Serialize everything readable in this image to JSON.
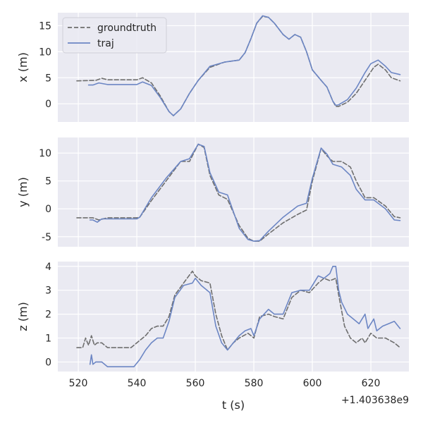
{
  "chart_data": {
    "type": "line",
    "xlabel": "t (s)",
    "x_offset_label": "+1.403638e9",
    "xlim": [
      513,
      633
    ],
    "x_ticks": [
      520,
      540,
      560,
      580,
      600,
      620
    ],
    "grid": true,
    "legend": {
      "placement": "top-left",
      "panel": 0
    },
    "colors": {
      "groundtruth": "#6e6e6e",
      "traj": "#6c86c4",
      "background": "#eaeaf2",
      "grid": "#ffffff"
    },
    "series_names": [
      "groundtruth",
      "traj"
    ],
    "panels": [
      {
        "ylabel": "x (m)",
        "ylim": [
          -3.5,
          17.5
        ],
        "y_ticks": [
          0,
          5,
          10,
          15
        ],
        "series": [
          {
            "name": "groundtruth",
            "style": "dashed",
            "x": [
              519.5,
              526,
              528,
              530,
              535,
              540,
              542,
              545,
              548,
              551,
              552.5,
              555,
              558,
              561,
              565,
              570,
              575,
              577,
              579,
              581,
              583,
              585,
              587,
              590,
              592,
              594,
              596,
              598,
              600,
              603,
              605,
              607,
              608,
              609,
              612,
              615,
              618,
              621,
              622.5,
              625,
              627,
              630
            ],
            "y": [
              4.4,
              4.5,
              4.9,
              4.6,
              4.6,
              4.6,
              5.0,
              4.0,
              1.5,
              -1.5,
              -2.3,
              -1.0,
              2.0,
              4.5,
              7.0,
              8.0,
              8.4,
              9.8,
              12.5,
              15.5,
              16.8,
              16.6,
              15.5,
              13.3,
              12.4,
              13.3,
              12.8,
              10.0,
              6.5,
              4.5,
              3.2,
              0.5,
              -0.5,
              -0.5,
              0.3,
              2.0,
              4.5,
              7.0,
              7.6,
              6.5,
              5.0,
              4.4
            ]
          },
          {
            "name": "traj",
            "style": "solid",
            "x": [
              523.5,
              525,
              527,
              528,
              530,
              535,
              540,
              542,
              545,
              548,
              551,
              552.5,
              555,
              558,
              561,
              565,
              570,
              575,
              577,
              579,
              581,
              583,
              585,
              587,
              590,
              592,
              594,
              596,
              598,
              600,
              603,
              605,
              607,
              608,
              609,
              612,
              615,
              618,
              620,
              622.5,
              625,
              627,
              630
            ],
            "y": [
              3.6,
              3.6,
              4.0,
              3.9,
              3.7,
              3.7,
              3.7,
              4.2,
              3.5,
              1.2,
              -1.5,
              -2.3,
              -1.0,
              2.0,
              4.5,
              7.2,
              8.0,
              8.4,
              9.8,
              12.5,
              15.5,
              16.9,
              16.6,
              15.5,
              13.3,
              12.4,
              13.3,
              12.8,
              10.0,
              6.5,
              4.5,
              3.2,
              0.5,
              -0.3,
              -0.2,
              0.8,
              3.0,
              6.0,
              7.7,
              8.4,
              7.2,
              6.0,
              5.6
            ]
          }
        ]
      },
      {
        "ylabel": "y (m)",
        "ylim": [
          -6.8,
          12.8
        ],
        "y_ticks": [
          -5,
          0,
          5,
          10
        ],
        "series": [
          {
            "name": "groundtruth",
            "style": "dashed",
            "x": [
              519.5,
              525,
              527,
              530,
              535,
              540,
              541,
              545,
              550,
              555,
              558,
              561,
              563,
              565,
              568,
              571,
              575,
              578,
              580,
              582,
              585,
              590,
              595,
              598,
              600,
              603,
              605,
              607,
              610,
              613,
              615,
              618,
              621,
              625,
              628,
              630
            ],
            "y": [
              -1.6,
              -1.6,
              -2.0,
              -1.6,
              -1.6,
              -1.6,
              -1.5,
              1.5,
              5.0,
              8.5,
              8.5,
              11.6,
              11.0,
              6.0,
              2.5,
              1.7,
              -3.0,
              -5.3,
              -5.8,
              -5.8,
              -4.5,
              -2.5,
              -1.0,
              -0.2,
              5.0,
              10.8,
              9.5,
              8.5,
              8.5,
              7.5,
              5.0,
              2.0,
              2.0,
              0.5,
              -1.4,
              -1.6
            ]
          },
          {
            "name": "traj",
            "style": "solid",
            "x": [
              524,
              525,
              526.5,
              528,
              530,
              535,
              540,
              541,
              545,
              550,
              555,
              558,
              561,
              563,
              565,
              568,
              571,
              575,
              578,
              580,
              582,
              585,
              590,
              595,
              598,
              600,
              603,
              605,
              607,
              610,
              613,
              615,
              618,
              621,
              625,
              628,
              630
            ],
            "y": [
              -2.0,
              -2.0,
              -2.4,
              -1.8,
              -1.8,
              -1.8,
              -1.8,
              -1.5,
              2.0,
              5.5,
              8.5,
              9.0,
              11.6,
              11.2,
              6.5,
              3.0,
              2.5,
              -3.5,
              -5.5,
              -5.8,
              -5.7,
              -4.0,
              -1.5,
              0.5,
              1.0,
              5.5,
              10.9,
              9.8,
              8.0,
              7.5,
              6.0,
              3.5,
              1.6,
              1.6,
              0.0,
              -2.0,
              -2.1
            ]
          }
        ]
      },
      {
        "ylabel": "z (m)",
        "ylim": [
          -0.4,
          4.2
        ],
        "y_ticks": [
          0,
          1,
          2,
          3,
          4
        ],
        "series": [
          {
            "name": "groundtruth",
            "style": "dashed",
            "x": [
              519.5,
              521.5,
              522.5,
              523.5,
              524.5,
              525.5,
              526.5,
              528,
              530,
              533,
              538,
              541,
              543,
              545,
              547,
              549,
              551,
              553,
              556,
              559,
              560,
              562,
              565,
              567,
              569,
              571,
              573,
              575,
              578,
              580,
              582,
              585,
              587,
              590,
              593,
              596,
              599,
              602,
              604,
              606,
              608,
              609,
              611,
              613,
              615,
              617,
              618,
              620,
              622,
              625,
              628,
              630
            ],
            "y": [
              0.6,
              0.6,
              1.0,
              0.7,
              1.1,
              0.7,
              0.8,
              0.8,
              0.6,
              0.6,
              0.6,
              0.9,
              1.1,
              1.4,
              1.5,
              1.5,
              1.9,
              2.8,
              3.3,
              3.8,
              3.6,
              3.4,
              3.3,
              2.0,
              1.1,
              0.5,
              0.8,
              1.0,
              1.2,
              1.0,
              1.9,
              2.0,
              1.9,
              1.8,
              2.7,
              3.0,
              2.9,
              3.3,
              3.5,
              3.4,
              3.5,
              2.8,
              1.5,
              1.0,
              0.8,
              1.0,
              0.8,
              1.2,
              1.0,
              1.0,
              0.8,
              0.6
            ]
          },
          {
            "name": "traj",
            "style": "solid",
            "x": [
              524,
              524.5,
              525,
              526,
              527,
              528,
              530,
              535,
              539,
              541,
              543,
              545,
              547,
              549,
              551,
              553,
              556,
              559,
              560,
              562,
              565,
              567,
              569,
              571,
              573,
              575,
              577,
              579,
              580,
              582,
              585,
              587,
              590,
              593,
              596,
              599,
              602,
              604,
              606,
              607,
              608,
              609,
              610,
              612,
              614,
              616,
              618,
              619,
              620,
              621,
              622,
              624,
              626,
              628,
              630
            ],
            "y": [
              -0.1,
              0.3,
              -0.1,
              0.0,
              0.0,
              0.0,
              -0.2,
              -0.2,
              -0.2,
              0.1,
              0.5,
              0.8,
              1.0,
              1.0,
              1.7,
              2.7,
              3.2,
              3.3,
              3.5,
              3.2,
              2.9,
              1.5,
              0.8,
              0.5,
              0.8,
              1.1,
              1.3,
              1.4,
              1.1,
              1.8,
              2.2,
              2.0,
              2.0,
              2.9,
              3.0,
              3.0,
              3.6,
              3.5,
              3.7,
              4.0,
              4.0,
              3.0,
              2.5,
              2.0,
              1.8,
              1.6,
              2.0,
              1.4,
              1.6,
              1.8,
              1.3,
              1.5,
              1.6,
              1.7,
              1.4
            ]
          }
        ]
      }
    ]
  }
}
